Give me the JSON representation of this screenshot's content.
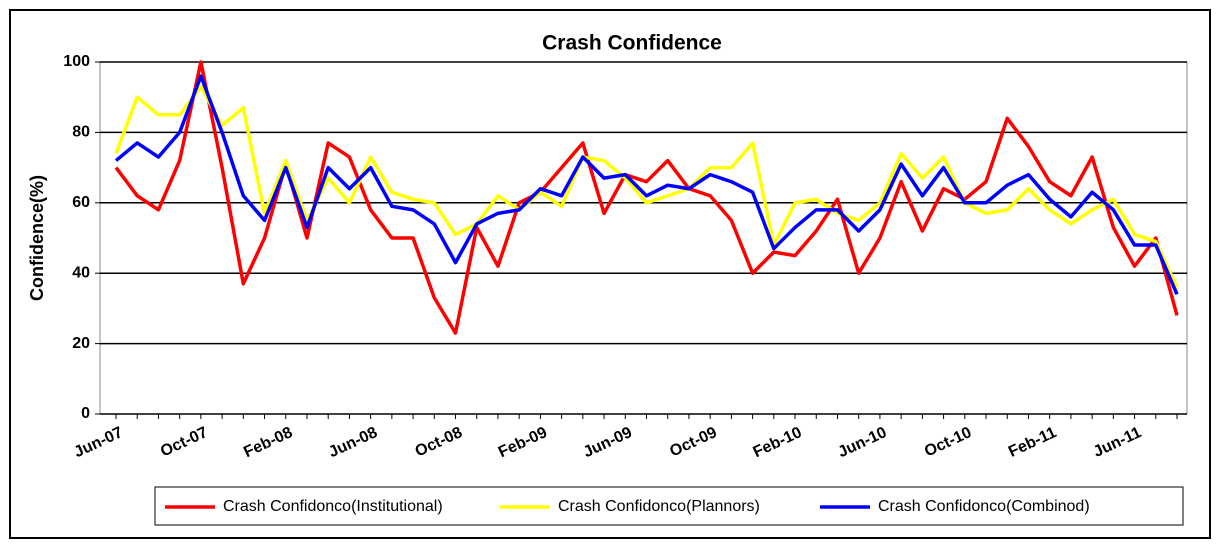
{
  "chart_data": {
    "type": "line",
    "title": "Crash Confidence",
    "y_label": "Confidence(%)",
    "categories": [
      "Jun-07",
      null,
      null,
      null,
      "Oct-07",
      null,
      null,
      null,
      "Feb-08",
      null,
      null,
      null,
      "Jun-08",
      null,
      null,
      null,
      "Oct-08",
      null,
      null,
      null,
      "Feb-09",
      null,
      null,
      null,
      "Jun-09",
      null,
      null,
      null,
      "Oct-09",
      null,
      null,
      null,
      "Feb-10",
      null,
      null,
      null,
      "Jun-10",
      null,
      null,
      null,
      "Oct-10",
      null,
      null,
      null,
      "Feb-11",
      null,
      null,
      null,
      "Jun-11",
      null,
      null
    ],
    "series": [
      {
        "name": "Crash Confidonco(Institutional)",
        "color": "#ff0000",
        "values": [
          70,
          62,
          58,
          72,
          100,
          70,
          37,
          50,
          71,
          50,
          77,
          73,
          58,
          50,
          50,
          33,
          23,
          53,
          42,
          60,
          63,
          70,
          77,
          57,
          68,
          66,
          72,
          64,
          62,
          55,
          40,
          46,
          45,
          52,
          61,
          40,
          50,
          66,
          52,
          64,
          61,
          66,
          84,
          76,
          66,
          62,
          73,
          53,
          42,
          50,
          28
        ]
      },
      {
        "name": "Crash Confidonco(Plannors)",
        "color": "#ffff00",
        "values": [
          74,
          90,
          85,
          85,
          93,
          82,
          87,
          57,
          72,
          55,
          67,
          60,
          73,
          63,
          61,
          60,
          51,
          54,
          62,
          58,
          63,
          59,
          73,
          72,
          67,
          60,
          62,
          64,
          70,
          70,
          77,
          48,
          60,
          61,
          57,
          55,
          60,
          74,
          67,
          73,
          60,
          57,
          58,
          64,
          58,
          54,
          58,
          61,
          51,
          49,
          36
        ]
      },
      {
        "name": "Crash Confidonco(Combinod)",
        "color": "#0000ff",
        "values": [
          72,
          77,
          73,
          80,
          96,
          80,
          62,
          55,
          70,
          53,
          70,
          64,
          70,
          59,
          58,
          54,
          43,
          54,
          57,
          58,
          64,
          62,
          73,
          67,
          68,
          62,
          65,
          64,
          68,
          66,
          63,
          47,
          53,
          58,
          58,
          52,
          58,
          71,
          62,
          70,
          60,
          60,
          65,
          68,
          61,
          56,
          63,
          58,
          48,
          48,
          34
        ]
      }
    ],
    "ylim": [
      0,
      100
    ],
    "yticks": [
      0,
      20,
      40,
      60,
      80,
      100
    ],
    "grid": true
  }
}
